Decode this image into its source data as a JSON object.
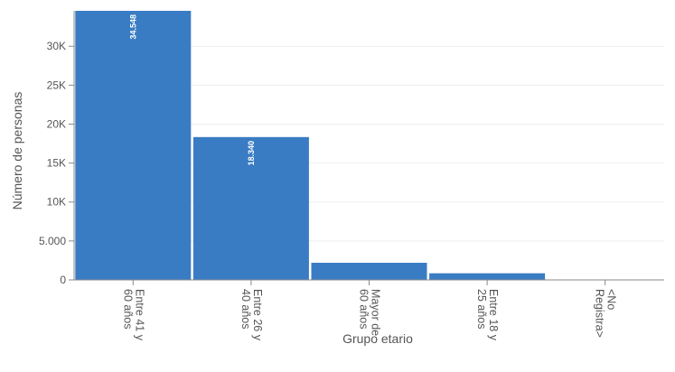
{
  "chart_data": {
    "type": "bar",
    "categories": [
      [
        "Entre 41 y",
        "60 años"
      ],
      [
        "Entre 26 y",
        "40 años"
      ],
      [
        "Mayor de",
        "60 años"
      ],
      [
        "Entre 18 y",
        "25 años"
      ],
      [
        "<No",
        "Registra>"
      ]
    ],
    "values": [
      34548,
      18340,
      2200,
      850,
      0
    ],
    "data_labels": [
      "34.548",
      "18.340",
      "",
      "",
      ""
    ],
    "xlabel": "Grupo etario",
    "ylabel": "Número de personas",
    "ylim": [
      0,
      34548
    ],
    "yticks": [
      0,
      5000,
      10000,
      15000,
      20000,
      25000,
      30000
    ],
    "ytick_labels": [
      "0",
      "5.000",
      "10K",
      "15K",
      "20K",
      "25K",
      "30K"
    ],
    "bar_color": "#3a7cc3",
    "grid_color": "#eeeeee",
    "grid": true,
    "legend": "none"
  }
}
